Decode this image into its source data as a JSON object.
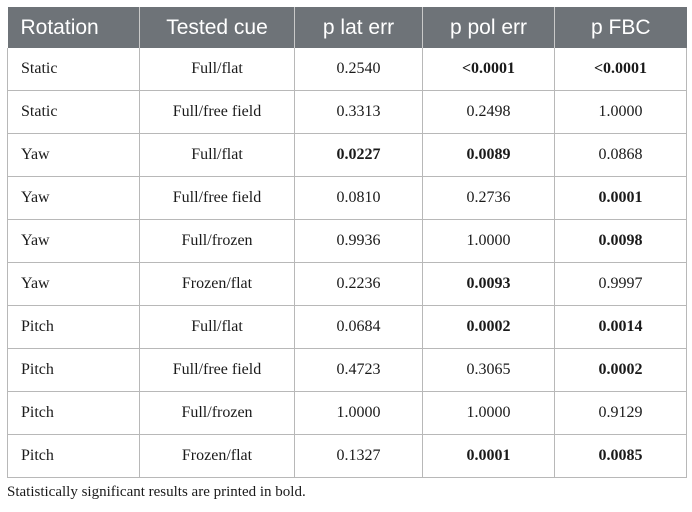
{
  "table": {
    "headers": [
      "Rotation",
      "Tested cue",
      "p lat err",
      "p pol err",
      "p FBC"
    ],
    "rows": [
      {
        "cells": [
          "Static",
          "Full/flat",
          "0.2540",
          "<0.0001",
          "<0.0001"
        ],
        "bold": [
          false,
          false,
          false,
          true,
          true
        ]
      },
      {
        "cells": [
          "Static",
          "Full/free field",
          "0.3313",
          "0.2498",
          "1.0000"
        ],
        "bold": [
          false,
          false,
          false,
          false,
          false
        ]
      },
      {
        "cells": [
          "Yaw",
          "Full/flat",
          "0.0227",
          "0.0089",
          "0.0868"
        ],
        "bold": [
          false,
          false,
          true,
          true,
          false
        ]
      },
      {
        "cells": [
          "Yaw",
          "Full/free field",
          "0.0810",
          "0.2736",
          "0.0001"
        ],
        "bold": [
          false,
          false,
          false,
          false,
          true
        ]
      },
      {
        "cells": [
          "Yaw",
          "Full/frozen",
          "0.9936",
          "1.0000",
          "0.0098"
        ],
        "bold": [
          false,
          false,
          false,
          false,
          true
        ]
      },
      {
        "cells": [
          "Yaw",
          "Frozen/flat",
          "0.2236",
          "0.0093",
          "0.9997"
        ],
        "bold": [
          false,
          false,
          false,
          true,
          false
        ]
      },
      {
        "cells": [
          "Pitch",
          "Full/flat",
          "0.0684",
          "0.0002",
          "0.0014"
        ],
        "bold": [
          false,
          false,
          false,
          true,
          true
        ]
      },
      {
        "cells": [
          "Pitch",
          "Full/free field",
          "0.4723",
          "0.3065",
          "0.0002"
        ],
        "bold": [
          false,
          false,
          false,
          false,
          true
        ]
      },
      {
        "cells": [
          "Pitch",
          "Full/frozen",
          "1.0000",
          "1.0000",
          "0.9129"
        ],
        "bold": [
          false,
          false,
          false,
          false,
          false
        ]
      },
      {
        "cells": [
          "Pitch",
          "Frozen/flat",
          "0.1327",
          "0.0001",
          "0.0085"
        ],
        "bold": [
          false,
          false,
          false,
          true,
          true
        ]
      }
    ]
  },
  "footnote": "Statistically significant results are printed in bold.",
  "colors": {
    "header_background": "#6e7378",
    "header_text": "#ffffff",
    "grid_line": "#b8b8b8"
  }
}
